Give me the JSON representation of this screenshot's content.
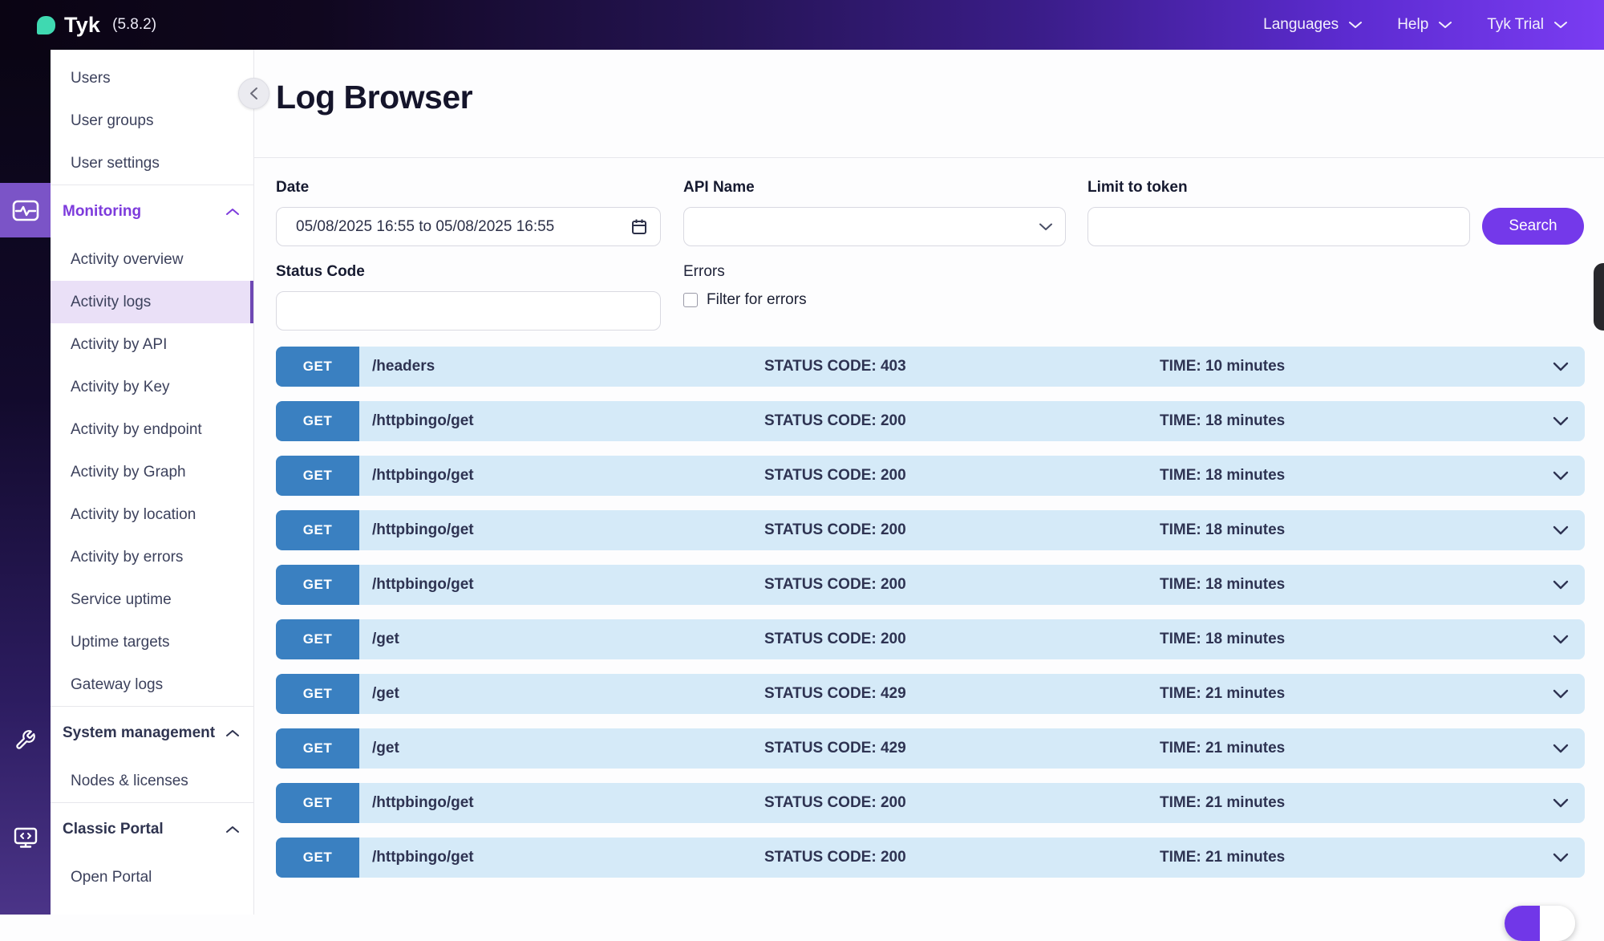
{
  "header": {
    "logo_text": "Tyk",
    "version": "(5.8.2)",
    "menu": [
      "Languages",
      "Help",
      "Tyk Trial"
    ]
  },
  "sidebar": {
    "top_items": [
      "Users",
      "User groups",
      "User settings"
    ],
    "sections": [
      {
        "label": "Monitoring",
        "active": true,
        "items": [
          "Activity overview",
          "Activity logs",
          "Activity by API",
          "Activity by Key",
          "Activity by endpoint",
          "Activity by Graph",
          "Activity by location",
          "Activity by errors",
          "Service uptime",
          "Uptime targets",
          "Gateway logs"
        ]
      },
      {
        "label": "System management",
        "active": false,
        "items": [
          "Nodes & licenses"
        ]
      },
      {
        "label": "Classic Portal",
        "active": false,
        "items": [
          "Open Portal"
        ]
      }
    ],
    "active_item": "Activity logs"
  },
  "page": {
    "title": "Log Browser"
  },
  "filters": {
    "date": {
      "label": "Date",
      "value": "05/08/2025 16:55 to 05/08/2025 16:55"
    },
    "api_name": {
      "label": "API Name",
      "value": ""
    },
    "limit_to_token": {
      "label": "Limit to token",
      "value": ""
    },
    "search_label": "Search",
    "status_code": {
      "label": "Status Code",
      "value": ""
    },
    "errors": {
      "label": "Errors",
      "checkbox_label": "Filter for errors",
      "checked": false
    }
  },
  "labels": {
    "status_prefix": "STATUS CODE:",
    "time_prefix": "TIME:"
  },
  "logs": [
    {
      "method": "GET",
      "path": "/headers",
      "status_code": 403,
      "time": "10 minutes"
    },
    {
      "method": "GET",
      "path": "/httpbingo/get",
      "status_code": 200,
      "time": "18 minutes"
    },
    {
      "method": "GET",
      "path": "/httpbingo/get",
      "status_code": 200,
      "time": "18 minutes"
    },
    {
      "method": "GET",
      "path": "/httpbingo/get",
      "status_code": 200,
      "time": "18 minutes"
    },
    {
      "method": "GET",
      "path": "/httpbingo/get",
      "status_code": 200,
      "time": "18 minutes"
    },
    {
      "method": "GET",
      "path": "/get",
      "status_code": 200,
      "time": "18 minutes"
    },
    {
      "method": "GET",
      "path": "/get",
      "status_code": 429,
      "time": "21 minutes"
    },
    {
      "method": "GET",
      "path": "/get",
      "status_code": 429,
      "time": "21 minutes"
    },
    {
      "method": "GET",
      "path": "/httpbingo/get",
      "status_code": 200,
      "time": "21 minutes"
    },
    {
      "method": "GET",
      "path": "/httpbingo/get",
      "status_code": 200,
      "time": "21 minutes"
    }
  ],
  "colors": {
    "accent": "#7439ea",
    "topbar_end": "#7a3cf2",
    "logo_teal": "#3fd9b1",
    "method_badge": "#3a80c1",
    "row_bg": "#d5eaf8",
    "active_nav_bg": "#eae0f7",
    "monitoring_text": "#7d3bdc"
  }
}
